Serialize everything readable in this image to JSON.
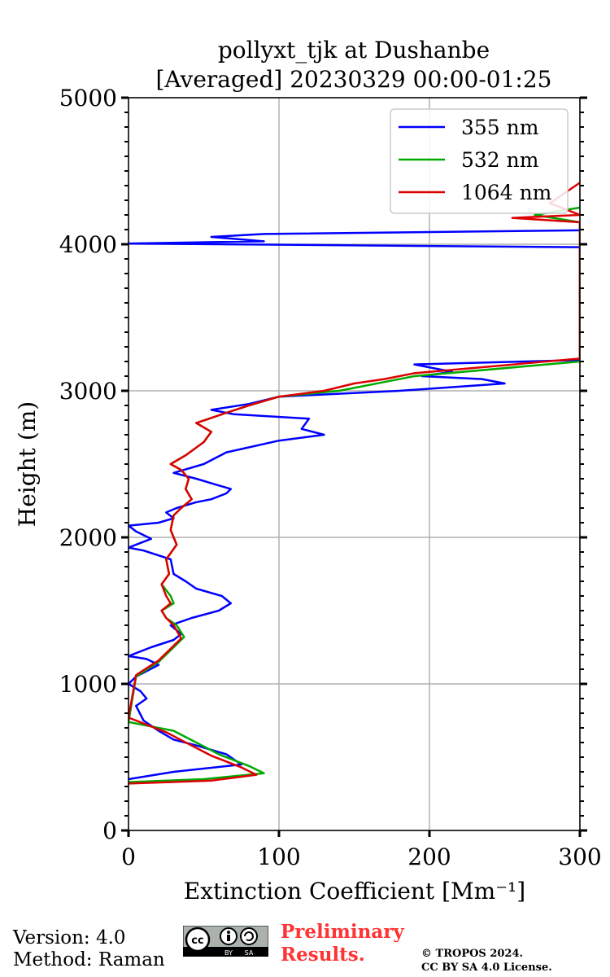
{
  "chart_data": {
    "type": "line",
    "title_line1": "pollyxt_tjk at Dushanbe",
    "title_line2": "[Averaged] 20230329 00:00-01:25",
    "xlabel": "Extinction Coefficient [Mm⁻¹]",
    "ylabel": "Height (m)",
    "xlim": [
      0,
      300
    ],
    "ylim": [
      0,
      5000
    ],
    "xticks": [
      0,
      100,
      200,
      300
    ],
    "yticks": [
      0,
      1000,
      2000,
      3000,
      4000,
      5000
    ],
    "grid": true,
    "legend_position": "top-right",
    "series": [
      {
        "name": "355 nm",
        "color": "#0000ff",
        "x": [
          0,
          30,
          75,
          65,
          45,
          30,
          20,
          10,
          5,
          12,
          8,
          0,
          5,
          20,
          12,
          0,
          15,
          30,
          35,
          28,
          42,
          60,
          68,
          62,
          45,
          38,
          30,
          28,
          10,
          0,
          15,
          5,
          0,
          20,
          30,
          25,
          32,
          45,
          55,
          65,
          68,
          58,
          45,
          30,
          50,
          65,
          100,
          130,
          115,
          120,
          70,
          55,
          80,
          100,
          180,
          250,
          235,
          195,
          215,
          190,
          300,
          300,
          0,
          90,
          55,
          90,
          300
        ],
        "y": [
          350,
          400,
          450,
          520,
          580,
          620,
          680,
          750,
          850,
          900,
          950,
          1000,
          1050,
          1130,
          1170,
          1190,
          1250,
          1300,
          1340,
          1400,
          1450,
          1500,
          1550,
          1600,
          1650,
          1700,
          1750,
          1850,
          1910,
          1930,
          1990,
          2040,
          2080,
          2100,
          2130,
          2170,
          2200,
          2240,
          2260,
          2300,
          2330,
          2360,
          2400,
          2440,
          2500,
          2580,
          2660,
          2700,
          2740,
          2810,
          2840,
          2870,
          2910,
          2960,
          3000,
          3050,
          3080,
          3100,
          3130,
          3180,
          3210,
          3980,
          4005,
          4020,
          4050,
          4070,
          4095
        ]
      },
      {
        "name": "532 nm",
        "color": "#00aa00",
        "x": [
          0,
          50,
          90,
          80,
          60,
          45,
          30,
          0,
          5,
          20,
          30,
          37,
          32,
          25,
          22,
          30,
          28,
          22,
          27,
          25,
          32,
          28,
          30,
          35,
          42,
          38,
          40,
          35,
          28,
          38,
          50,
          55,
          45,
          65,
          80,
          100,
          140,
          155,
          170,
          190,
          300,
          300,
          270,
          300
        ],
        "y": [
          330,
          350,
          390,
          440,
          520,
          600,
          680,
          740,
          1050,
          1150,
          1250,
          1320,
          1400,
          1450,
          1500,
          1550,
          1600,
          1680,
          1750,
          1850,
          1950,
          2050,
          2150,
          2200,
          2260,
          2330,
          2400,
          2460,
          2500,
          2560,
          2650,
          2720,
          2780,
          2850,
          2900,
          2960,
          3000,
          3030,
          3060,
          3100,
          3200,
          4150,
          4200,
          4250
        ]
      },
      {
        "name": "1064 nm",
        "color": "#dd0000",
        "x": [
          0,
          55,
          85,
          75,
          55,
          40,
          25,
          0,
          5,
          20,
          30,
          35,
          30,
          25,
          22,
          28,
          25,
          22,
          27,
          25,
          32,
          28,
          30,
          35,
          42,
          38,
          40,
          35,
          28,
          38,
          50,
          55,
          45,
          65,
          80,
          100,
          130,
          150,
          170,
          190,
          300,
          300,
          255,
          300,
          280,
          300
        ],
        "y": [
          320,
          340,
          380,
          430,
          510,
          590,
          670,
          770,
          1060,
          1160,
          1260,
          1310,
          1400,
          1450,
          1500,
          1550,
          1600,
          1680,
          1750,
          1850,
          1950,
          2050,
          2150,
          2200,
          2260,
          2330,
          2400,
          2460,
          2500,
          2560,
          2650,
          2720,
          2780,
          2850,
          2900,
          2960,
          3000,
          3050,
          3080,
          3120,
          3220,
          4150,
          4180,
          4200,
          4280,
          4420
        ]
      }
    ]
  },
  "footer": {
    "version": "Version: 4.0",
    "method": "Method: Raman",
    "license_badge": "cc-by-sa-icon",
    "preliminary_line1": "Preliminary",
    "preliminary_line2": "Results.",
    "copyright_line1": "© TROPOS 2024.",
    "copyright_line2": "CC BY SA 4.0 License."
  }
}
